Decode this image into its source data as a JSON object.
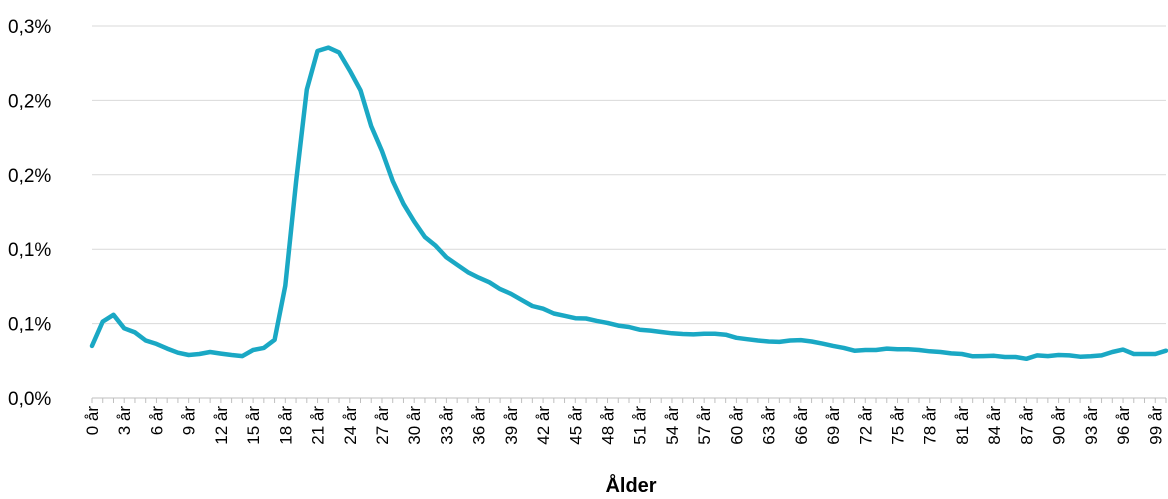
{
  "chart_data": {
    "type": "line",
    "title": "",
    "xlabel": "Ålder",
    "ylabel": "",
    "y_tick_labels": [
      "0,0%",
      "0,1%",
      "0,1%",
      "0,2%",
      "0,2%",
      "0,3%"
    ],
    "ylim": [
      0,
      0.275
    ],
    "grid": true,
    "line_color": "#1aa8c4",
    "grid_color": "#d9d9d9",
    "x_tick_labels": [
      "0 år",
      "3 år",
      "6 år",
      "9 år",
      "12 år",
      "15 år",
      "18 år",
      "21 år",
      "24 år",
      "27 år",
      "30 år",
      "33 år",
      "36 år",
      "39 år",
      "42 år",
      "45 år",
      "48 år",
      "51 år",
      "54 år",
      "57 år",
      "60 år",
      "63 år",
      "66 år",
      "69 år",
      "72 år",
      "75 år",
      "78 år",
      "81 år",
      "84 år",
      "87 år",
      "90 år",
      "93 år",
      "96 år",
      "99 år"
    ],
    "x": [
      0,
      1,
      2,
      3,
      4,
      5,
      6,
      7,
      8,
      9,
      10,
      11,
      12,
      13,
      14,
      15,
      16,
      17,
      18,
      19,
      20,
      21,
      22,
      23,
      24,
      25,
      26,
      27,
      28,
      29,
      30,
      31,
      32,
      33,
      34,
      35,
      36,
      37,
      38,
      39,
      40,
      41,
      42,
      43,
      44,
      45,
      46,
      47,
      48,
      49,
      50,
      51,
      52,
      53,
      54,
      55,
      56,
      57,
      58,
      59,
      60,
      61,
      62,
      63,
      64,
      65,
      66,
      67,
      68,
      69,
      70,
      71,
      72,
      73,
      74,
      75,
      76,
      77,
      78,
      79,
      80,
      81,
      82,
      83,
      84,
      85,
      86,
      87,
      88,
      89,
      90,
      91,
      92,
      93,
      94,
      95,
      96,
      97,
      98,
      99,
      100
    ],
    "series": [
      {
        "values": [
          0.0385,
          0.0565,
          0.0615,
          0.0515,
          0.0485,
          0.0425,
          0.04,
          0.0365,
          0.0335,
          0.0318,
          0.0325,
          0.034,
          0.0328,
          0.0318,
          0.031,
          0.0355,
          0.037,
          0.043,
          0.083,
          0.16,
          0.228,
          0.2565,
          0.259,
          0.2555,
          0.242,
          0.2275,
          0.201,
          0.1825,
          0.1605,
          0.1435,
          0.1305,
          0.119,
          0.1125,
          0.104,
          0.0985,
          0.093,
          0.089,
          0.0855,
          0.0805,
          0.077,
          0.0725,
          0.068,
          0.066,
          0.0625,
          0.0608,
          0.059,
          0.0588,
          0.057,
          0.0555,
          0.0535,
          0.0525,
          0.0505,
          0.0498,
          0.0488,
          0.0478,
          0.0473,
          0.047,
          0.0475,
          0.0475,
          0.0468,
          0.0445,
          0.0435,
          0.0425,
          0.0418,
          0.0415,
          0.0425,
          0.0428,
          0.0418,
          0.0402,
          0.0385,
          0.037,
          0.035,
          0.0355,
          0.0355,
          0.0365,
          0.036,
          0.036,
          0.0355,
          0.0345,
          0.034,
          0.033,
          0.0325,
          0.0308,
          0.031,
          0.0312,
          0.0303,
          0.0303,
          0.029,
          0.0315,
          0.031,
          0.0318,
          0.0315,
          0.0305,
          0.0308,
          0.0315,
          0.034,
          0.0358,
          0.0325,
          0.0325,
          0.0325,
          0.035
        ]
      }
    ]
  }
}
